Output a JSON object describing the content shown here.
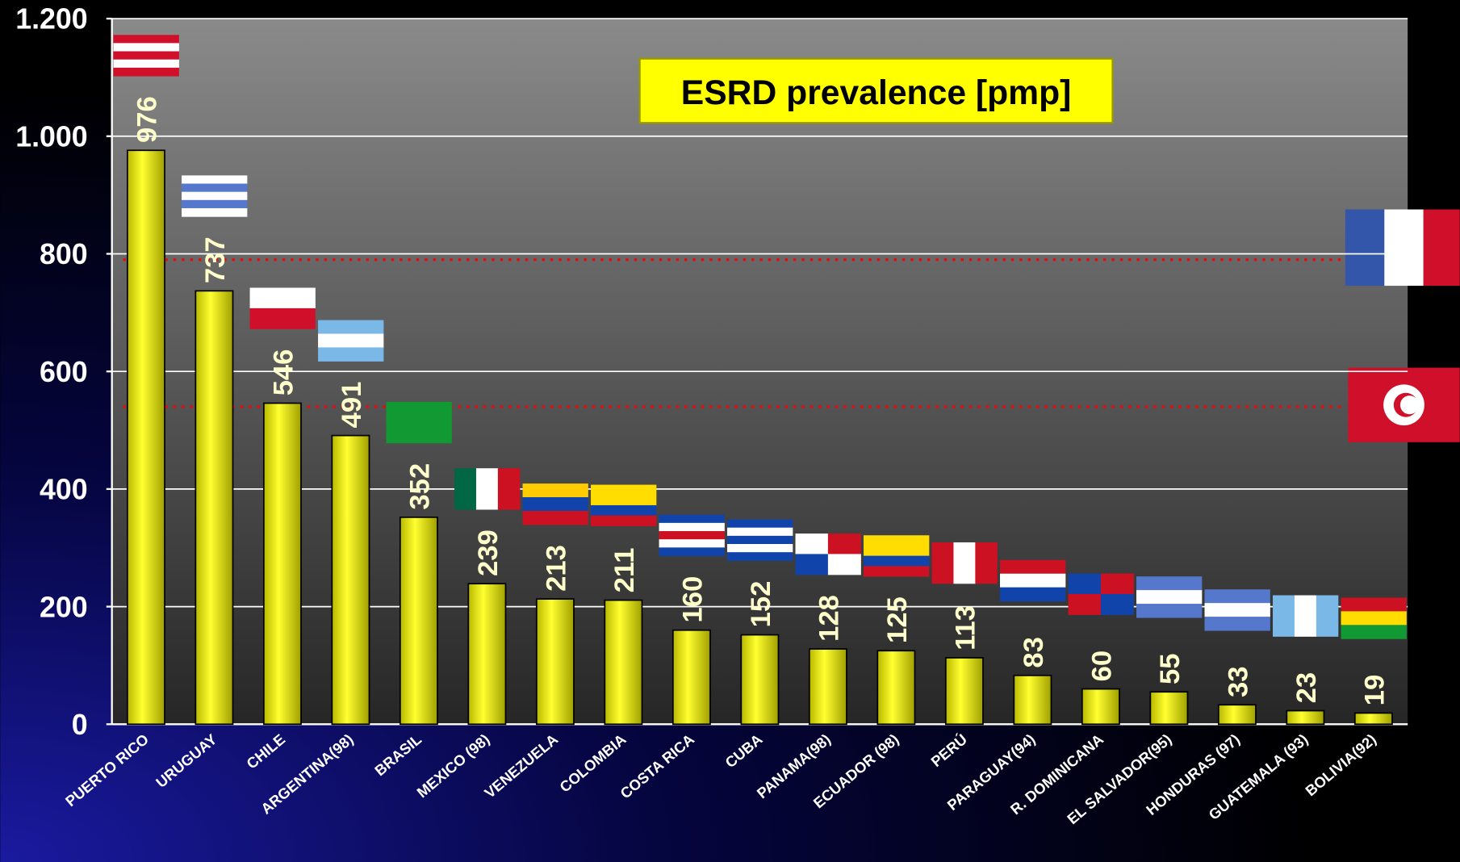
{
  "chart_data": {
    "type": "bar",
    "title": "ESRD prevalence [pmp]",
    "categories": [
      "PUERTO RICO",
      "URUGUAY",
      "CHILE",
      "ARGENTINA(98)",
      "BRASIL",
      "MEXICO (98)",
      "VENEZUELA",
      "COLOMBIA",
      "COSTA RICA",
      "CUBA",
      "PANAMA(98)",
      "ECUADOR (98)",
      "PERÚ",
      "PARAGUAY(94)",
      "R. DOMINICANA",
      "EL SALVADOR(95)",
      "HONDURAS (97)",
      "GUATEMALA (93)",
      "BOLIVIA(92)"
    ],
    "values": [
      976,
      737,
      546,
      491,
      352,
      239,
      213,
      211,
      160,
      152,
      128,
      125,
      113,
      83,
      60,
      55,
      33,
      23,
      19
    ],
    "color": "#ffff00",
    "ylim": [
      0,
      1200
    ],
    "yticks": [
      0,
      200,
      400,
      600,
      {
        "value": 800,
        "label": "800"
      },
      {
        "value": 1000,
        "label": "1.000"
      },
      {
        "value": 1200,
        "label": "1.200"
      }
    ],
    "grid": true,
    "reference_lines": [
      790,
      540
    ]
  }
}
